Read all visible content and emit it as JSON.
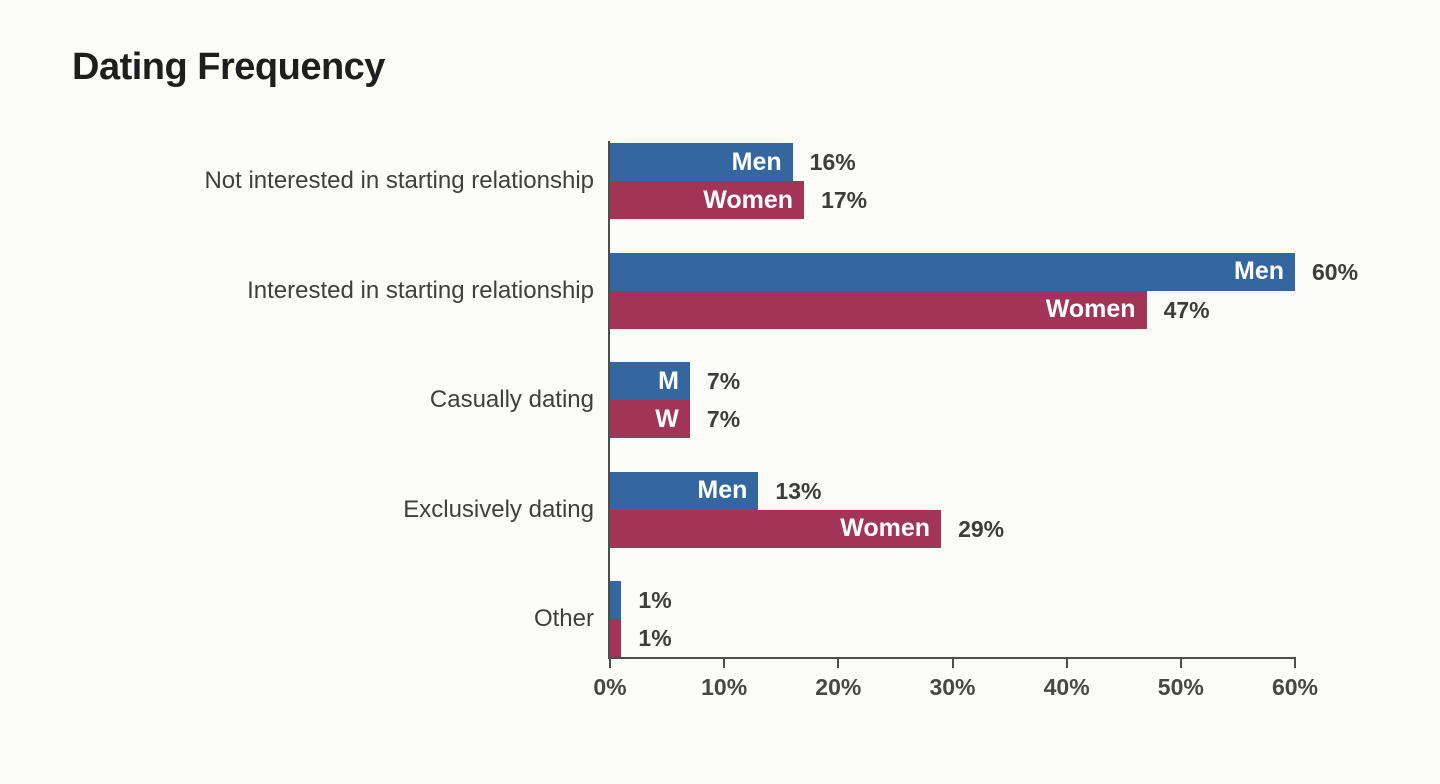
{
  "chart_data": {
    "type": "bar",
    "orientation": "horizontal",
    "title": "Dating Frequency",
    "categories": [
      "Not interested in starting relationship",
      "Interested in starting relationship",
      "Casually dating",
      "Exclusively dating",
      "Other"
    ],
    "series": [
      {
        "name": "Men",
        "color": "#34669f",
        "values": [
          16,
          60,
          7,
          13,
          1
        ],
        "bar_labels": [
          "Men",
          "Men",
          "M",
          "Men",
          ""
        ],
        "value_labels": [
          "16%",
          "60%",
          "7%",
          "13%",
          "1%"
        ]
      },
      {
        "name": "Women",
        "color": "#a23457",
        "values": [
          17,
          47,
          7,
          29,
          1
        ],
        "bar_labels": [
          "Women",
          "Women",
          "W",
          "Women",
          ""
        ],
        "value_labels": [
          "17%",
          "47%",
          "7%",
          "29%",
          "1%"
        ]
      }
    ],
    "xlim": [
      0,
      60
    ],
    "x_ticks": [
      "0%",
      "10%",
      "20%",
      "30%",
      "40%",
      "50%",
      "60%"
    ],
    "x_tick_values": [
      0,
      10,
      20,
      30,
      40,
      50,
      60
    ],
    "grid": false,
    "legend_position": "in-bar labels",
    "axis_color": "#4d4d4d",
    "value_label_color": "#3d3d3d",
    "category_label_color": "#3f3f3f",
    "bar_label_color": "#ffffff",
    "background_color": "#fbfbf8"
  }
}
